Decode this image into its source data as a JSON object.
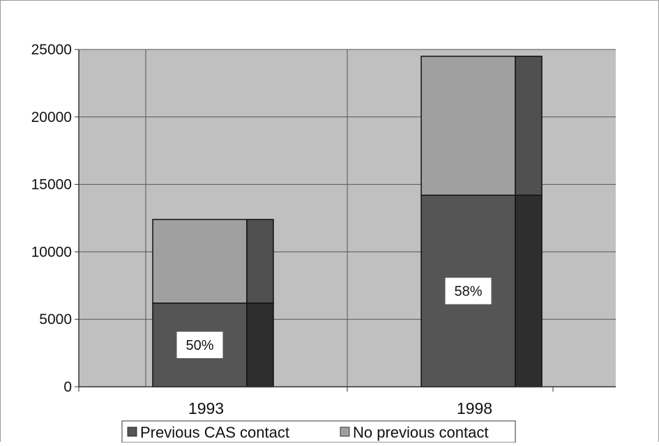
{
  "chart_data": {
    "type": "bar",
    "stacked": true,
    "categories": [
      "1993",
      "1998"
    ],
    "series": [
      {
        "name": "Previous CAS contact",
        "values": [
          6200,
          14200
        ],
        "color": "#555555"
      },
      {
        "name": "No previous contact",
        "values": [
          6200,
          10300
        ],
        "color": "#a0a0a0"
      }
    ],
    "data_labels": [
      "50%",
      "58%"
    ],
    "ylim": [
      0,
      25000
    ],
    "yticks": [
      "0",
      "5000",
      "10000",
      "15000",
      "20000",
      "25000"
    ],
    "grid": true,
    "legend_position": "bottom",
    "colors": {
      "plot_background": "#c0c0c0",
      "gridline": "#555555",
      "previous_side": "#2e2e2e",
      "no_previous_side": "#505050"
    }
  }
}
